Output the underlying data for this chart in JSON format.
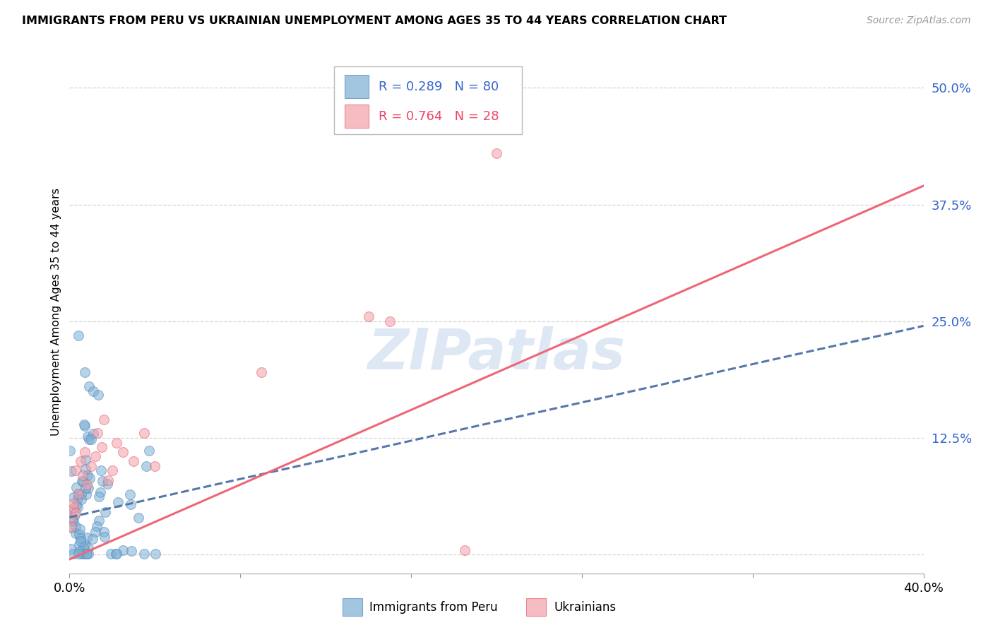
{
  "title": "IMMIGRANTS FROM PERU VS UKRAINIAN UNEMPLOYMENT AMONG AGES 35 TO 44 YEARS CORRELATION CHART",
  "source": "Source: ZipAtlas.com",
  "ylabel": "Unemployment Among Ages 35 to 44 years",
  "xlim": [
    0.0,
    0.4
  ],
  "ylim": [
    -0.02,
    0.54
  ],
  "xtick_vals": [
    0.0,
    0.08,
    0.16,
    0.24,
    0.32,
    0.4
  ],
  "ytick_vals": [
    0.0,
    0.125,
    0.25,
    0.375,
    0.5
  ],
  "xticklabels": [
    "0.0%",
    "",
    "",
    "",
    "",
    "40.0%"
  ],
  "yticklabels": [
    "",
    "12.5%",
    "25.0%",
    "37.5%",
    "50.0%"
  ],
  "peru_R": 0.289,
  "peru_N": 80,
  "ukraine_R": 0.764,
  "ukraine_N": 28,
  "peru_color": "#7BAFD4",
  "ukraine_color": "#F4A0A8",
  "peru_edge_color": "#5588BB",
  "ukraine_edge_color": "#E06070",
  "peru_line_color": "#5577AA",
  "ukraine_line_color": "#EE6677",
  "legend_text_color_blue": "#3366CC",
  "legend_text_color_pink": "#EE4466",
  "ytick_color": "#3366CC",
  "watermark_color": "#C8D8EE",
  "background": "#FFFFFF"
}
